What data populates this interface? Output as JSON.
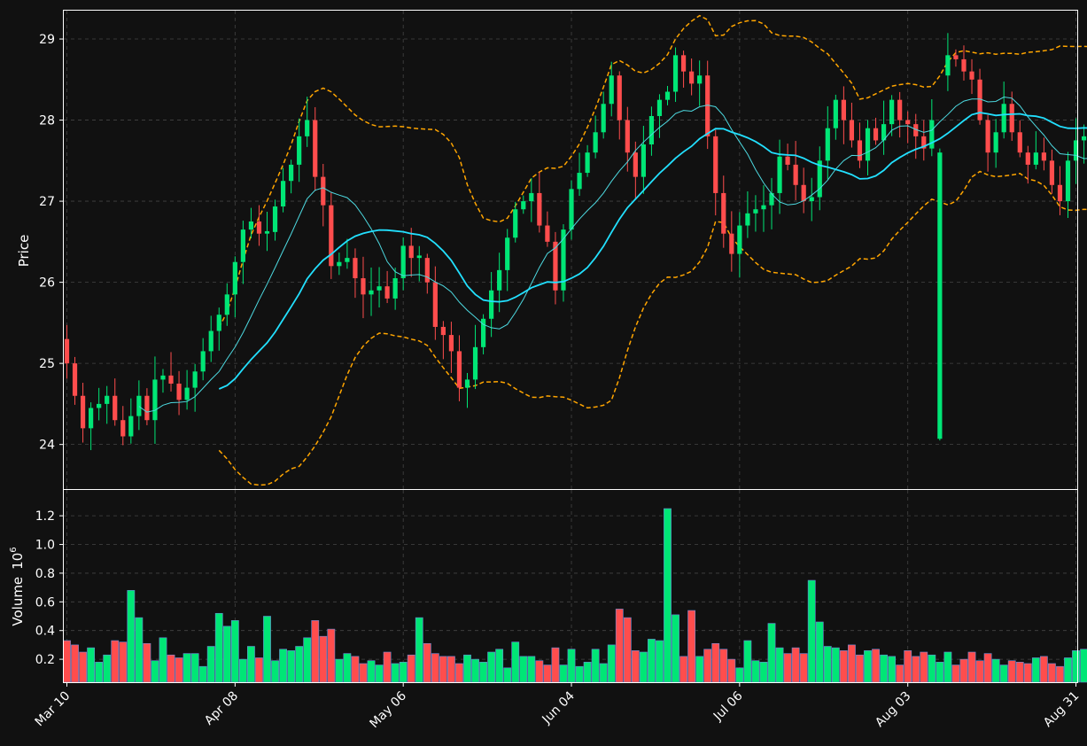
{
  "chart_data": {
    "type": "candlestick",
    "price_panel": {
      "ylabel": "Price",
      "ylim": [
        23.45,
        29.35
      ],
      "yticks": [
        "24",
        "25",
        "26",
        "27",
        "28",
        "29"
      ],
      "grid": true,
      "series": [
        {
          "type": "candlestick",
          "up_color": "#00e676",
          "down_color": "#ff4d4d"
        },
        {
          "type": "line",
          "color": "#4dd9e0"
        },
        {
          "type": "line",
          "color": "#22e0ff"
        },
        {
          "type": "line",
          "color": "#ffa500"
        },
        {
          "type": "line",
          "color": "#ffa500"
        }
      ]
    },
    "volume_panel": {
      "ylabel": "Volume",
      "ylabel_exponent": "10",
      "ylabel_exponent_power": "6",
      "ylim": [
        0.04,
        1.38
      ],
      "yticks": [
        "0.2",
        "0.4",
        "0.6",
        "0.8",
        "1.0",
        "1.2"
      ],
      "grid": true
    },
    "xticks": [
      {
        "label": "Mar 10",
        "index": 0
      },
      {
        "label": "Apr 08",
        "index": 21
      },
      {
        "label": "May 06",
        "index": 42
      },
      {
        "label": "Jun 04",
        "index": 63
      },
      {
        "label": "Jul 06",
        "index": 84
      },
      {
        "label": "Aug 03",
        "index": 105
      },
      {
        "label": "Aug 31",
        "index": 126
      }
    ],
    "n_bars": 133,
    "anchors": [
      [
        0,
        25.0
      ],
      [
        1,
        24.6
      ],
      [
        2,
        24.2
      ],
      [
        3,
        24.45
      ],
      [
        4,
        24.5
      ],
      [
        5,
        24.6
      ],
      [
        6,
        24.3
      ],
      [
        7,
        24.1
      ],
      [
        9,
        24.6
      ],
      [
        10,
        24.3
      ],
      [
        11,
        24.8
      ],
      [
        12,
        24.85
      ],
      [
        13,
        24.75
      ],
      [
        14,
        24.55
      ],
      [
        15,
        24.7
      ],
      [
        16,
        24.9
      ],
      [
        17,
        25.15
      ],
      [
        18,
        25.4
      ],
      [
        19,
        25.6
      ],
      [
        20,
        25.85
      ],
      [
        22,
        26.65
      ],
      [
        23,
        26.75
      ],
      [
        24,
        26.6
      ],
      [
        25,
        26.62
      ],
      [
        27,
        27.25
      ],
      [
        28,
        27.45
      ],
      [
        29,
        27.8
      ],
      [
        30,
        28.0
      ],
      [
        31,
        27.3
      ],
      [
        32,
        26.95
      ],
      [
        33,
        26.2
      ],
      [
        34,
        26.25
      ],
      [
        35,
        26.3
      ],
      [
        36,
        26.05
      ],
      [
        37,
        25.85
      ],
      [
        38,
        25.9
      ],
      [
        39,
        25.95
      ],
      [
        40,
        25.8
      ],
      [
        41,
        26.05
      ],
      [
        42,
        26.45
      ],
      [
        43,
        26.3
      ],
      [
        44,
        26.3
      ],
      [
        45,
        26.0
      ],
      [
        46,
        25.45
      ],
      [
        47,
        25.35
      ],
      [
        48,
        25.15
      ],
      [
        49,
        24.7
      ],
      [
        50,
        24.8
      ],
      [
        51,
        25.2
      ],
      [
        52,
        25.55
      ],
      [
        53,
        25.9
      ],
      [
        54,
        26.15
      ],
      [
        55,
        26.55
      ],
      [
        56,
        26.9
      ],
      [
        57,
        27.0
      ],
      [
        58,
        27.1
      ],
      [
        59,
        26.7
      ],
      [
        60,
        26.5
      ],
      [
        61,
        25.9
      ],
      [
        62,
        26.65
      ],
      [
        63,
        27.15
      ],
      [
        64,
        27.35
      ],
      [
        65,
        27.6
      ],
      [
        66,
        27.85
      ],
      [
        67,
        28.2
      ],
      [
        68,
        28.55
      ],
      [
        69,
        28.0
      ],
      [
        70,
        27.6
      ],
      [
        71,
        27.3
      ],
      [
        72,
        27.7
      ],
      [
        73,
        28.05
      ],
      [
        74,
        28.25
      ],
      [
        75,
        28.35
      ],
      [
        76,
        28.8
      ],
      [
        77,
        28.6
      ],
      [
        78,
        28.45
      ],
      [
        79,
        28.55
      ],
      [
        80,
        27.8
      ],
      [
        81,
        27.1
      ],
      [
        82,
        26.6
      ],
      [
        83,
        26.35
      ],
      [
        84,
        26.7
      ],
      [
        85,
        26.85
      ],
      [
        86,
        26.9
      ],
      [
        87,
        26.95
      ],
      [
        88,
        27.1
      ],
      [
        89,
        27.55
      ],
      [
        90,
        27.45
      ],
      [
        91,
        27.2
      ],
      [
        92,
        27.0
      ],
      [
        93,
        27.05
      ],
      [
        94,
        27.5
      ],
      [
        95,
        27.9
      ],
      [
        96,
        28.25
      ],
      [
        97,
        28.0
      ],
      [
        98,
        27.75
      ],
      [
        99,
        27.5
      ],
      [
        100,
        27.9
      ],
      [
        101,
        27.75
      ],
      [
        102,
        27.95
      ],
      [
        103,
        28.25
      ],
      [
        104,
        28.0
      ],
      [
        105,
        27.95
      ],
      [
        106,
        27.8
      ],
      [
        107,
        27.65
      ],
      [
        108,
        28.0
      ],
      [
        109,
        28.55
      ],
      [
        110,
        28.8
      ],
      [
        111,
        28.75
      ],
      [
        112,
        28.6
      ],
      [
        113,
        28.5
      ],
      [
        114,
        28.0
      ],
      [
        115,
        27.6
      ],
      [
        116,
        27.85
      ],
      [
        117,
        28.2
      ],
      [
        118,
        27.85
      ],
      [
        119,
        27.6
      ],
      [
        120,
        27.45
      ],
      [
        121,
        27.6
      ],
      [
        122,
        27.5
      ],
      [
        123,
        27.2
      ],
      [
        124,
        27.0
      ],
      [
        125,
        27.5
      ],
      [
        126,
        27.75
      ],
      [
        127,
        27.8
      ],
      [
        128,
        27.9
      ],
      [
        129,
        27.7
      ],
      [
        130,
        27.5
      ],
      [
        131,
        27.45
      ],
      [
        132,
        27.4
      ]
    ],
    "spikes": [
      {
        "index": 109,
        "low": 24.05,
        "high": 27.6,
        "direction": "up"
      }
    ],
    "volume_anchors": [
      [
        0,
        0.33
      ],
      [
        1,
        0.3
      ],
      [
        2,
        0.25
      ],
      [
        3,
        0.28
      ],
      [
        4,
        0.18
      ],
      [
        5,
        0.23
      ],
      [
        6,
        0.33
      ],
      [
        7,
        0.32
      ],
      [
        8,
        0.68
      ],
      [
        9,
        0.49
      ],
      [
        10,
        0.31
      ],
      [
        11,
        0.19
      ],
      [
        12,
        0.35
      ],
      [
        13,
        0.23
      ],
      [
        14,
        0.21
      ],
      [
        15,
        0.24
      ],
      [
        16,
        0.24
      ],
      [
        17,
        0.15
      ],
      [
        18,
        0.29
      ],
      [
        19,
        0.52
      ],
      [
        20,
        0.43
      ],
      [
        21,
        0.47
      ],
      [
        22,
        0.2
      ],
      [
        23,
        0.29
      ],
      [
        24,
        0.21
      ],
      [
        25,
        0.5
      ],
      [
        26,
        0.19
      ],
      [
        27,
        0.27
      ],
      [
        28,
        0.26
      ],
      [
        29,
        0.29
      ],
      [
        30,
        0.35
      ],
      [
        31,
        0.47
      ],
      [
        32,
        0.36
      ],
      [
        33,
        0.41
      ],
      [
        34,
        0.2
      ],
      [
        35,
        0.24
      ],
      [
        36,
        0.22
      ],
      [
        37,
        0.17
      ],
      [
        38,
        0.19
      ],
      [
        39,
        0.16
      ],
      [
        40,
        0.25
      ],
      [
        41,
        0.17
      ],
      [
        42,
        0.18
      ],
      [
        43,
        0.23
      ],
      [
        44,
        0.49
      ],
      [
        45,
        0.31
      ],
      [
        46,
        0.24
      ],
      [
        47,
        0.22
      ],
      [
        48,
        0.22
      ],
      [
        49,
        0.17
      ],
      [
        50,
        0.23
      ],
      [
        51,
        0.2
      ],
      [
        52,
        0.18
      ],
      [
        53,
        0.25
      ],
      [
        54,
        0.27
      ],
      [
        55,
        0.14
      ],
      [
        56,
        0.32
      ],
      [
        57,
        0.22
      ],
      [
        58,
        0.22
      ],
      [
        59,
        0.19
      ],
      [
        60,
        0.16
      ],
      [
        61,
        0.28
      ],
      [
        62,
        0.16
      ],
      [
        63,
        0.27
      ],
      [
        64,
        0.15
      ],
      [
        65,
        0.18
      ],
      [
        66,
        0.27
      ],
      [
        67,
        0.17
      ],
      [
        68,
        0.3
      ],
      [
        69,
        0.55
      ],
      [
        70,
        0.49
      ],
      [
        71,
        0.26
      ],
      [
        72,
        0.25
      ],
      [
        73,
        0.34
      ],
      [
        74,
        0.33
      ],
      [
        75,
        1.25
      ],
      [
        76,
        0.51
      ],
      [
        77,
        0.22
      ],
      [
        78,
        0.54
      ],
      [
        79,
        0.22
      ],
      [
        80,
        0.27
      ],
      [
        81,
        0.31
      ],
      [
        82,
        0.27
      ],
      [
        83,
        0.2
      ],
      [
        84,
        0.14
      ],
      [
        85,
        0.33
      ],
      [
        86,
        0.19
      ],
      [
        87,
        0.18
      ],
      [
        88,
        0.45
      ],
      [
        89,
        0.28
      ],
      [
        90,
        0.24
      ],
      [
        91,
        0.28
      ],
      [
        92,
        0.24
      ],
      [
        93,
        0.75
      ],
      [
        94,
        0.46
      ],
      [
        95,
        0.29
      ],
      [
        96,
        0.28
      ],
      [
        97,
        0.26
      ],
      [
        98,
        0.3
      ],
      [
        99,
        0.23
      ],
      [
        100,
        0.26
      ],
      [
        101,
        0.27
      ],
      [
        102,
        0.23
      ],
      [
        103,
        0.22
      ],
      [
        104,
        0.16
      ],
      [
        105,
        0.26
      ],
      [
        106,
        0.22
      ],
      [
        107,
        0.25
      ],
      [
        108,
        0.23
      ],
      [
        109,
        0.18
      ],
      [
        110,
        0.25
      ],
      [
        111,
        0.16
      ],
      [
        112,
        0.2
      ],
      [
        113,
        0.25
      ],
      [
        114,
        0.19
      ],
      [
        115,
        0.24
      ],
      [
        116,
        0.2
      ],
      [
        117,
        0.16
      ],
      [
        118,
        0.19
      ],
      [
        119,
        0.18
      ],
      [
        120,
        0.17
      ],
      [
        121,
        0.21
      ],
      [
        122,
        0.22
      ],
      [
        123,
        0.17
      ],
      [
        124,
        0.15
      ],
      [
        125,
        0.21
      ],
      [
        126,
        0.26
      ],
      [
        127,
        0.27
      ],
      [
        128,
        0.26
      ],
      [
        129,
        0.25
      ],
      [
        130,
        0.24
      ],
      [
        131,
        0.26
      ],
      [
        132,
        0.27
      ]
    ]
  },
  "colors": {
    "background": "#111111",
    "axis": "#ffffff",
    "grid": "#444444",
    "up": "#00e676",
    "down": "#ff4d4d",
    "ma_fast": "#4dd9e0",
    "ma_slow": "#22e0ff",
    "band": "#ffa500"
  }
}
